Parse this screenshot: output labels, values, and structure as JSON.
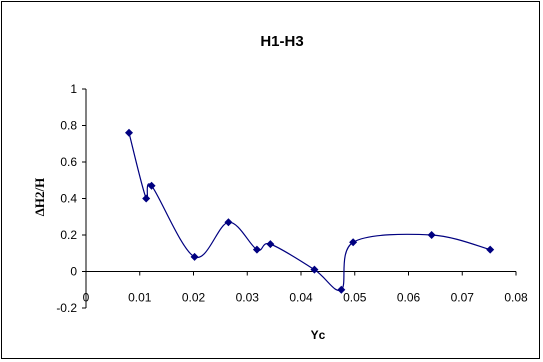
{
  "chart_data": {
    "type": "scatter",
    "title": "H1-H3",
    "xlabel": "Yc",
    "ylabel": "ΔH2/H",
    "xlim": [
      0,
      0.08
    ],
    "ylim": [
      -0.2,
      1
    ],
    "x_ticks": [
      0,
      0.01,
      0.02,
      0.03,
      0.04,
      0.05,
      0.06,
      0.07,
      0.08
    ],
    "x_tick_labels": [
      "0",
      "0.01",
      "0.02",
      "0.03",
      "0.04",
      "0.05",
      "0.06",
      "0.07",
      "0.08"
    ],
    "y_ticks": [
      -0.2,
      0,
      0.2,
      0.4,
      0.6,
      0.8,
      1
    ],
    "y_tick_labels": [
      "-0.2",
      "0",
      "0.2",
      "0.4",
      "0.6",
      "0.8",
      "1"
    ],
    "grid": false,
    "legend": "none",
    "series": [
      {
        "marker": "diamond",
        "line": "smoothed",
        "color": "#000080",
        "points": [
          {
            "x": 0.008,
            "y": 0.76
          },
          {
            "x": 0.0112,
            "y": 0.4
          },
          {
            "x": 0.0122,
            "y": 0.47
          },
          {
            "x": 0.0202,
            "y": 0.08
          },
          {
            "x": 0.0265,
            "y": 0.27
          },
          {
            "x": 0.0318,
            "y": 0.12
          },
          {
            "x": 0.0343,
            "y": 0.15
          },
          {
            "x": 0.0425,
            "y": 0.01
          },
          {
            "x": 0.0475,
            "y": -0.1
          },
          {
            "x": 0.0497,
            "y": 0.16
          },
          {
            "x": 0.0643,
            "y": 0.2
          },
          {
            "x": 0.0752,
            "y": 0.12
          }
        ]
      }
    ]
  }
}
